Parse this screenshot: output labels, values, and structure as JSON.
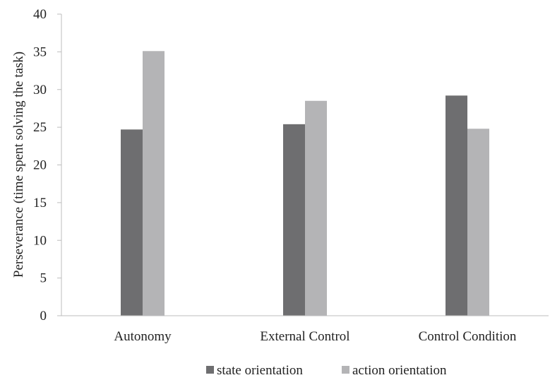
{
  "chart_data": {
    "type": "bar",
    "categories": [
      "Autonomy",
      "External Control",
      "Control Condition"
    ],
    "series": [
      {
        "name": "state orientation",
        "values": [
          24.7,
          25.4,
          29.2
        ],
        "color": "#6e6e70"
      },
      {
        "name": "action orientation",
        "values": [
          35.1,
          28.5,
          24.8
        ],
        "color": "#b4b4b6"
      }
    ],
    "ylabel": "Perseverance (time spent solving the task)",
    "xlabel": "",
    "ylim": [
      0,
      40
    ],
    "yticks": [
      0,
      5,
      10,
      15,
      20,
      25,
      30,
      35,
      40
    ],
    "grid": false,
    "legend_position": "bottom"
  }
}
